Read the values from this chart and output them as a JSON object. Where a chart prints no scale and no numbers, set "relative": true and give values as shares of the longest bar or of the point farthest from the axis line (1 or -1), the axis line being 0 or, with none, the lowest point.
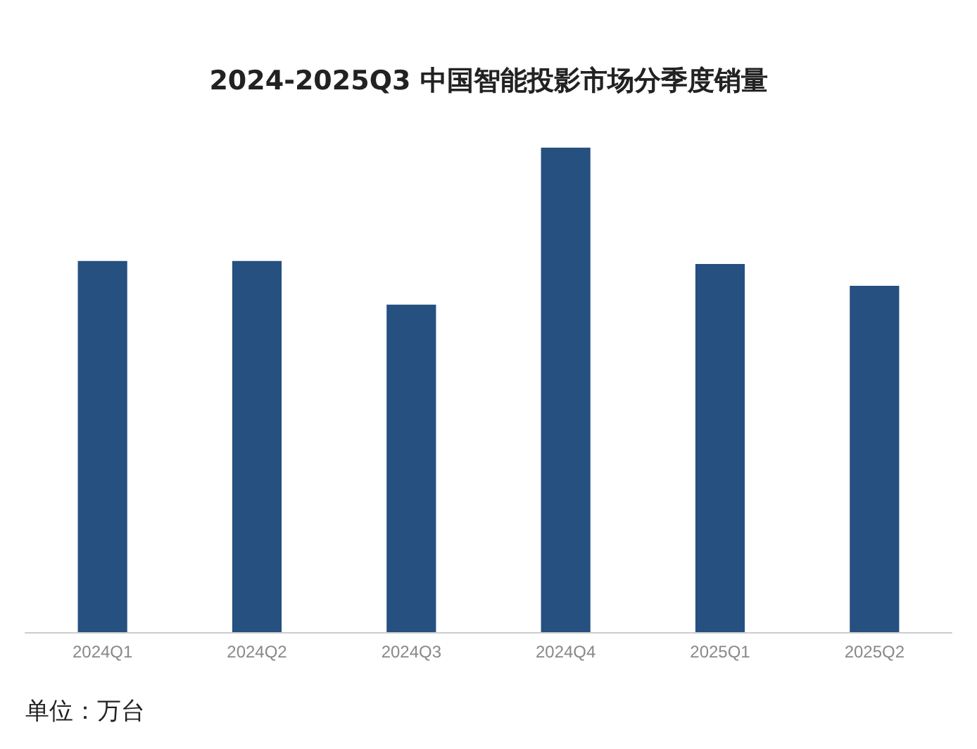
{
  "chart_data": {
    "type": "bar",
    "title": "2024-2025Q3 中国智能投影市场分季度销量",
    "categories": [
      "2024Q1",
      "2024Q2",
      "2024Q3",
      "2024Q4",
      "2025Q1",
      "2025Q2"
    ],
    "values": [
      0.766,
      0.766,
      0.676,
      1,
      0.76,
      0.715
    ],
    "color": "#25507f",
    "relative": true,
    "annotations": [
      "单位：万台"
    ]
  }
}
